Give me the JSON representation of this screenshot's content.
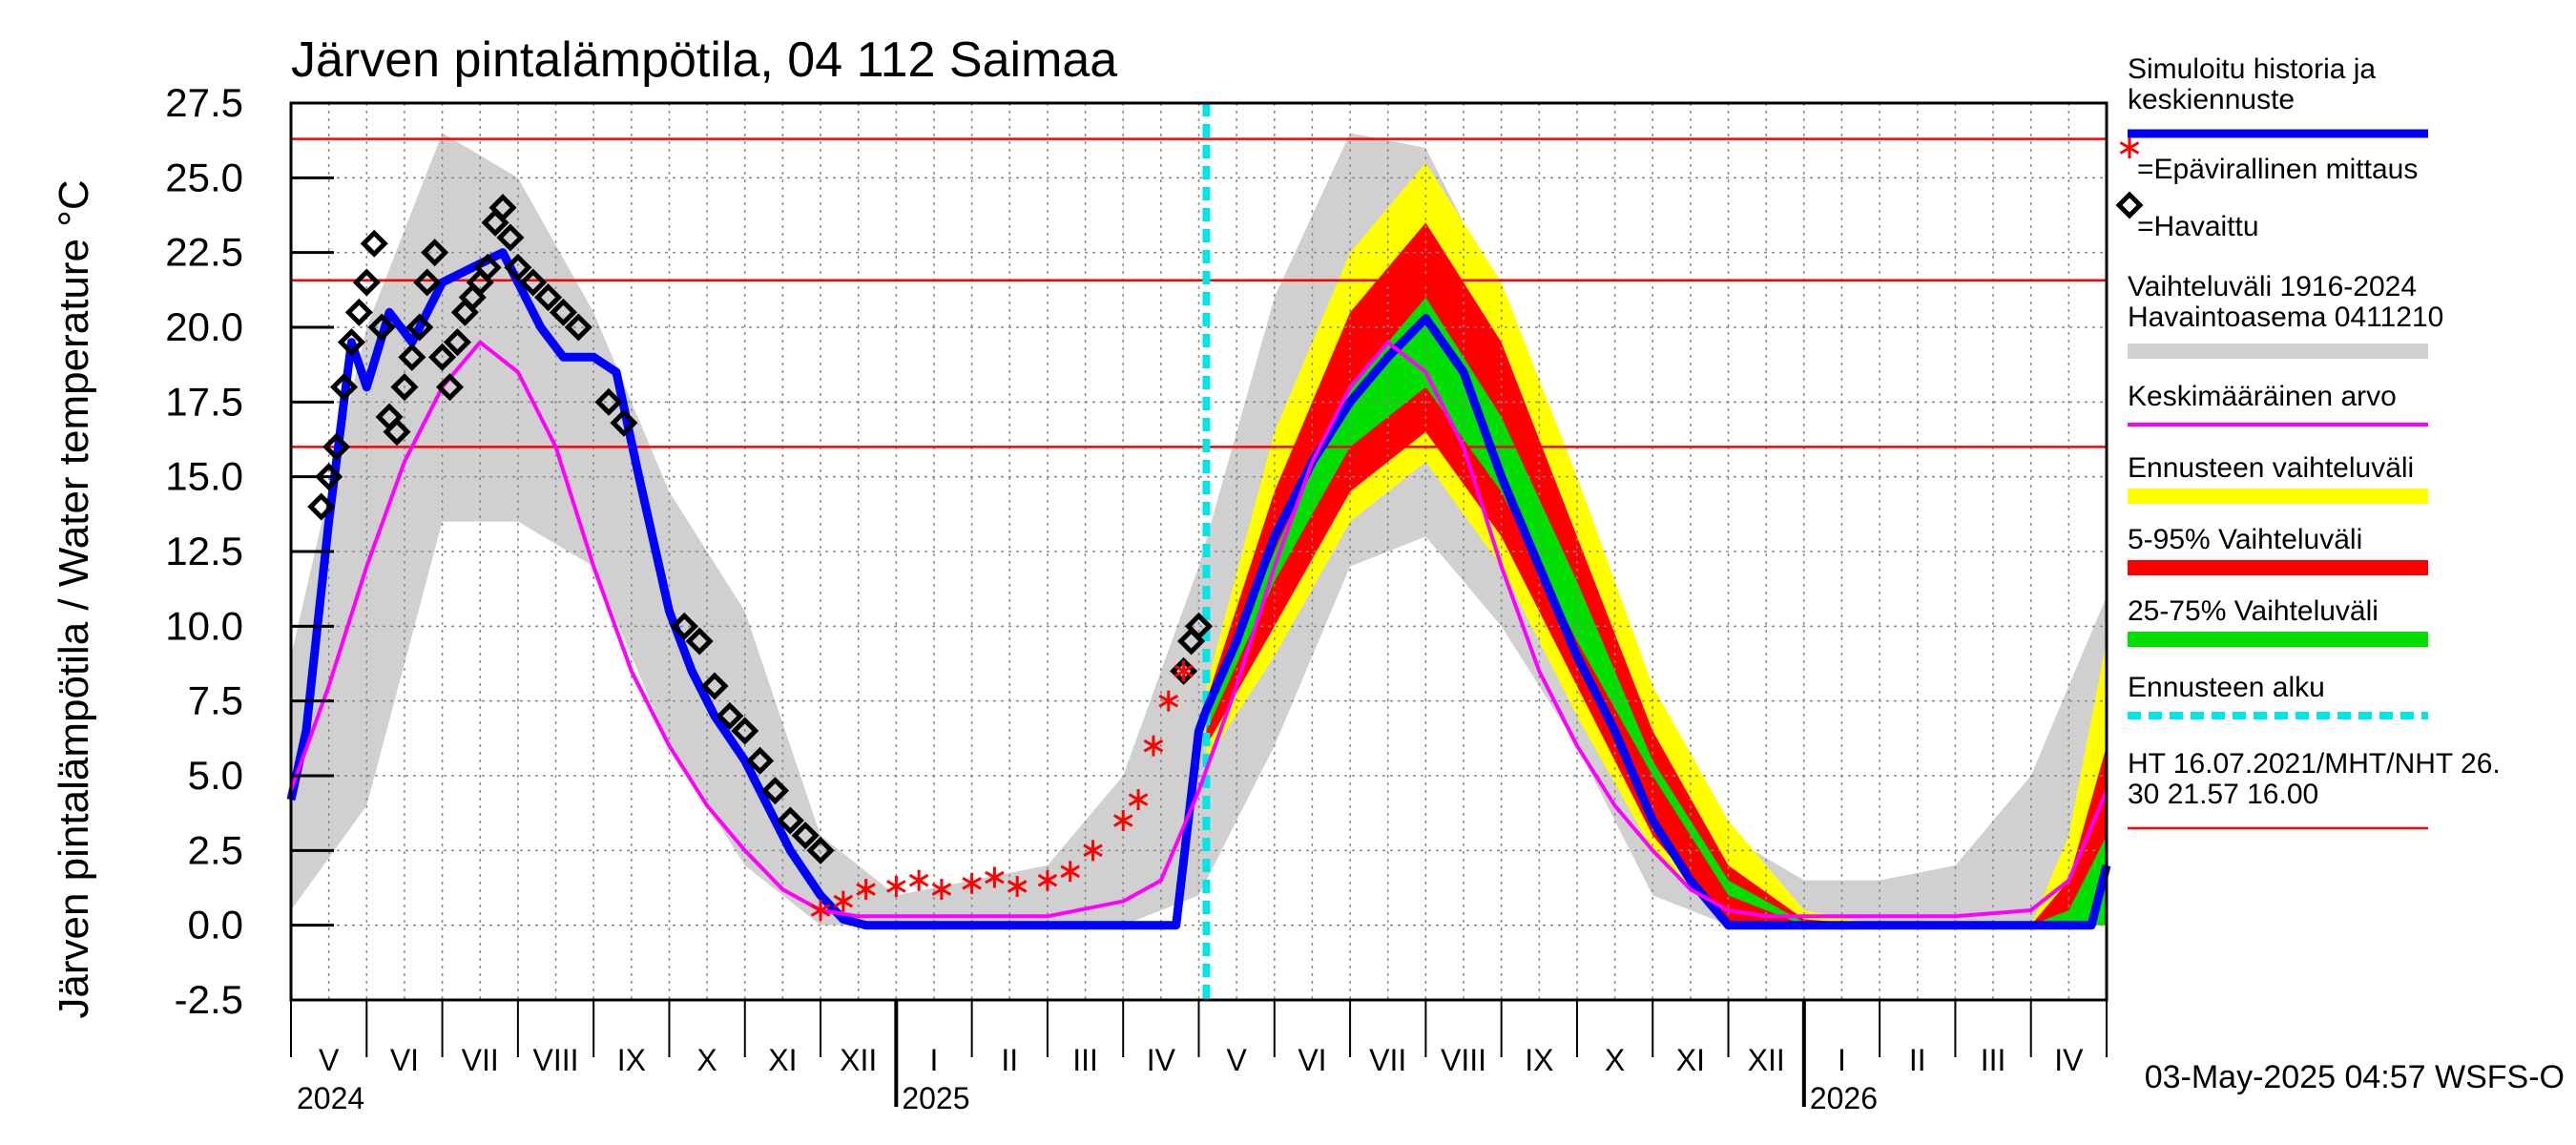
{
  "chart_data": {
    "type": "line",
    "title": "Järven pintalämpötila, 04 112 Saimaa",
    "ylabel": "Järven pintalämpötila / Water temperature °C",
    "xlabel": "",
    "ylim": [
      -2.5,
      27.5
    ],
    "yticks": [
      "27.5",
      "25.0",
      "22.5",
      "20.0",
      "17.5",
      "15.0",
      "12.5",
      "10.0",
      "7.5",
      "5.0",
      "2.5",
      "0.0",
      "-2.5"
    ],
    "x_start_month": "2024-04-22",
    "month_labels": [
      "V",
      "VI",
      "VII",
      "VIII",
      "IX",
      "X",
      "XI",
      "XII",
      "I",
      "II",
      "III",
      "IV",
      "V",
      "VI",
      "VII",
      "VIII",
      "IX",
      "X",
      "XI",
      "XII",
      "I",
      "II",
      "III",
      "IV"
    ],
    "year_labels": [
      "2024",
      "2025",
      "2026"
    ],
    "forecast_start_month_index": 12.1,
    "reference_lines": [
      {
        "label": "HT 16.07.2021",
        "value": 26.3
      },
      {
        "label": "MHT",
        "value": 21.57
      },
      {
        "label": "NHT",
        "value": 16.0
      }
    ],
    "series": [
      {
        "name": "Simuloitu historia ja keskiennuste",
        "color": "#0000ff",
        "x": [
          0,
          0.2,
          0.5,
          0.8,
          1.0,
          1.3,
          1.6,
          2.0,
          2.4,
          2.8,
          3.0,
          3.3,
          3.6,
          4.0,
          4.3,
          4.6,
          5.0,
          5.3,
          5.6,
          6.0,
          6.3,
          6.6,
          7.0,
          7.3,
          7.6,
          8.0,
          9.0,
          10.0,
          11.0,
          11.7,
          12.0,
          12.1,
          12.5,
          13.0,
          13.5,
          14.0,
          14.5,
          15.0,
          15.5,
          16.0,
          16.5,
          17.0,
          17.5,
          18.0,
          18.5,
          19.0,
          20.0,
          21.0,
          22.0,
          23.0,
          23.8,
          24.0
        ],
        "y": [
          4.2,
          6.5,
          13.5,
          19.5,
          18.0,
          20.5,
          19.5,
          21.5,
          22.0,
          22.5,
          21.5,
          20.0,
          19.0,
          19.0,
          18.5,
          15.0,
          10.5,
          8.5,
          7.0,
          5.5,
          4.0,
          2.5,
          1.0,
          0.2,
          0.0,
          0.0,
          0.0,
          0.0,
          0.0,
          0.0,
          6.5,
          7.2,
          9.5,
          13.0,
          15.5,
          17.5,
          19.0,
          20.3,
          18.5,
          15.0,
          12.0,
          9.0,
          6.5,
          3.5,
          1.5,
          0.0,
          0.0,
          0.0,
          0.0,
          0.0,
          0.0,
          2.0
        ]
      },
      {
        "name": "Keskimääräinen arvo",
        "color": "#ff00ff",
        "x": [
          0,
          0.5,
          1.0,
          1.5,
          2.0,
          2.5,
          3.0,
          3.5,
          4.0,
          4.5,
          5.0,
          5.5,
          6.0,
          6.5,
          7.0,
          7.5,
          8.0,
          9.0,
          10.0,
          11.0,
          11.5,
          12.0,
          12.5,
          13.0,
          13.5,
          14.0,
          14.5,
          15.0,
          15.5,
          16.0,
          16.5,
          17.0,
          17.5,
          18.0,
          18.5,
          19.0,
          19.5,
          20.0,
          21.0,
          22.0,
          23.0,
          23.5,
          24.0
        ],
        "y": [
          4.5,
          8.0,
          12.0,
          15.5,
          18.0,
          19.5,
          18.5,
          16.0,
          12.0,
          8.5,
          6.0,
          4.0,
          2.5,
          1.2,
          0.5,
          0.3,
          0.3,
          0.3,
          0.3,
          0.8,
          1.5,
          4.5,
          8.0,
          12.0,
          15.5,
          18.0,
          19.5,
          18.5,
          16.0,
          12.0,
          8.5,
          6.0,
          4.0,
          2.5,
          1.2,
          0.5,
          0.3,
          0.3,
          0.3,
          0.3,
          0.5,
          1.5,
          4.5
        ]
      },
      {
        "name": "=Havaittu",
        "color": "#000000",
        "marker": "diamond",
        "x": [
          0.4,
          0.5,
          0.6,
          0.7,
          0.8,
          0.9,
          1.0,
          1.1,
          1.2,
          1.3,
          1.4,
          1.5,
          1.6,
          1.7,
          1.8,
          1.9,
          2.0,
          2.1,
          2.2,
          2.3,
          2.4,
          2.5,
          2.6,
          2.7,
          2.8,
          2.9,
          3.0,
          3.2,
          3.4,
          3.6,
          3.8,
          4.2,
          4.4,
          5.2,
          5.4,
          5.6,
          5.8,
          6.0,
          6.2,
          6.4,
          6.6,
          6.8,
          7.0,
          11.8,
          11.9,
          12.0
        ],
        "y": [
          14.0,
          15.0,
          16.0,
          18.0,
          19.5,
          20.5,
          21.5,
          22.8,
          20.0,
          17.0,
          16.5,
          18.0,
          19.0,
          20.0,
          21.5,
          22.5,
          19.0,
          18.0,
          19.5,
          20.5,
          21.0,
          21.5,
          22.0,
          23.5,
          24.0,
          23.0,
          22.0,
          21.5,
          21.0,
          20.5,
          20.0,
          17.5,
          16.8,
          10.0,
          9.5,
          8.0,
          7.0,
          6.5,
          5.5,
          4.5,
          3.5,
          3.0,
          2.5,
          8.5,
          9.5,
          10.0
        ]
      },
      {
        "name": "=Epävirallinen mittaus",
        "color": "#ff0000",
        "marker": "asterisk",
        "x": [
          7.0,
          7.3,
          7.6,
          8.0,
          8.3,
          8.6,
          9.0,
          9.3,
          9.6,
          10.0,
          10.3,
          10.6,
          11.0,
          11.2,
          11.4,
          11.6,
          11.8
        ],
        "y": [
          0.5,
          0.8,
          1.2,
          1.3,
          1.5,
          1.2,
          1.4,
          1.6,
          1.3,
          1.5,
          1.8,
          2.5,
          3.5,
          4.2,
          6.0,
          7.5,
          8.5
        ]
      }
    ],
    "bands": [
      {
        "name": "Vaihteluväli 1916-2024 Havaintoasema 0411210",
        "color": "#d0d0d0",
        "x": [
          0,
          1,
          2,
          3,
          4,
          5,
          6,
          7,
          8,
          9,
          10,
          11,
          12,
          13,
          14,
          15,
          16,
          17,
          18,
          19,
          20,
          21,
          22,
          23,
          24
        ],
        "low": [
          0.5,
          4.0,
          13.5,
          13.5,
          12.0,
          6.0,
          2.0,
          0.0,
          0.0,
          0.0,
          0.0,
          0.0,
          1.0,
          6.0,
          12.0,
          13.0,
          10.0,
          6.0,
          1.0,
          0.0,
          0.0,
          0.0,
          0.0,
          0.0,
          1.0
        ],
        "high": [
          9.0,
          20.0,
          26.5,
          25.0,
          20.5,
          14.5,
          10.5,
          3.0,
          1.0,
          1.5,
          2.0,
          5.0,
          12.0,
          21.0,
          26.5,
          26.0,
          21.0,
          15.0,
          8.0,
          3.0,
          1.5,
          1.5,
          2.0,
          5.0,
          11.0
        ]
      },
      {
        "name": "Ennusteen vaihteluväli",
        "color": "#ffff00",
        "x": [
          12.1,
          13.0,
          14.0,
          15.0,
          16.0,
          17.0,
          18.0,
          19.0,
          20.0,
          21.0,
          22.0,
          23.0,
          23.5,
          24.0
        ],
        "low": [
          5.5,
          9.0,
          13.5,
          15.5,
          12.0,
          7.0,
          2.5,
          0.0,
          0.0,
          0.0,
          0.0,
          0.0,
          0.0,
          0.0
        ],
        "high": [
          8.0,
          16.5,
          22.5,
          25.5,
          21.5,
          15.0,
          8.0,
          3.5,
          0.5,
          0.0,
          0.0,
          0.0,
          3.0,
          9.5
        ]
      },
      {
        "name": "5-95% Vaihteluväli",
        "color": "#ff0000",
        "x": [
          12.1,
          13.0,
          14.0,
          15.0,
          16.0,
          17.0,
          18.0,
          19.0,
          20.0,
          21.0,
          22.0,
          23.0,
          23.5,
          24.0
        ],
        "low": [
          6.0,
          10.0,
          14.5,
          16.5,
          13.0,
          8.0,
          3.0,
          0.0,
          0.0,
          0.0,
          0.0,
          0.0,
          0.0,
          0.0
        ],
        "high": [
          7.5,
          14.5,
          20.5,
          23.5,
          19.5,
          13.0,
          6.5,
          2.0,
          0.2,
          0.0,
          0.0,
          0.0,
          1.5,
          6.0
        ]
      },
      {
        "name": "25-75% Vaihteluväli",
        "color": "#00e000",
        "x": [
          12.1,
          13.0,
          14.0,
          15.0,
          16.0,
          17.0,
          18.0,
          19.0,
          20.0,
          21.0,
          22.0,
          23.0,
          23.5,
          24.0
        ],
        "low": [
          6.5,
          11.5,
          16.0,
          18.0,
          14.5,
          9.5,
          5.0,
          1.0,
          0.0,
          0.0,
          0.0,
          0.0,
          0.0,
          0.0
        ],
        "high": [
          7.2,
          12.5,
          18.0,
          21.0,
          17.0,
          11.5,
          5.5,
          1.5,
          0.1,
          0.0,
          0.0,
          0.0,
          0.5,
          3.0
        ]
      }
    ],
    "legend": {
      "position": "right",
      "items": [
        {
          "label_line1": "Simuloitu historia ja",
          "label_line2": "keskiennuste",
          "color": "#0000ff",
          "kind": "line"
        },
        {
          "label_line1": "=Epävirallinen mittaus",
          "label_line2": "",
          "color": "#ff0000",
          "kind": "asterisk"
        },
        {
          "label_line1": "=Havaittu",
          "label_line2": "",
          "color": "#000000",
          "kind": "diamond"
        },
        {
          "label_line1": "Vaihteluväli 1916-2024",
          "label_line2": " Havaintoasema 0411210",
          "color": "#d0d0d0",
          "kind": "band"
        },
        {
          "label_line1": "Keskimääräinen arvo",
          "label_line2": "",
          "color": "#ff00ff",
          "kind": "line"
        },
        {
          "label_line1": "Ennusteen vaihteluväli",
          "label_line2": "",
          "color": "#ffff00",
          "kind": "band"
        },
        {
          "label_line1": "5-95% Vaihteluväli",
          "label_line2": "",
          "color": "#ff0000",
          "kind": "band"
        },
        {
          "label_line1": "25-75% Vaihteluväli",
          "label_line2": "",
          "color": "#00e000",
          "kind": "band"
        },
        {
          "label_line1": "Ennusteen alku",
          "label_line2": "",
          "color": "#00e5e5",
          "kind": "dashed"
        },
        {
          "label_line1": "HT 16.07.2021/MHT/NHT 26.",
          "label_line2": "30 21.57 16.00",
          "color": "#ff0000",
          "kind": "thinline"
        }
      ]
    },
    "footer": "03-May-2025 04:57 WSFS-O"
  }
}
